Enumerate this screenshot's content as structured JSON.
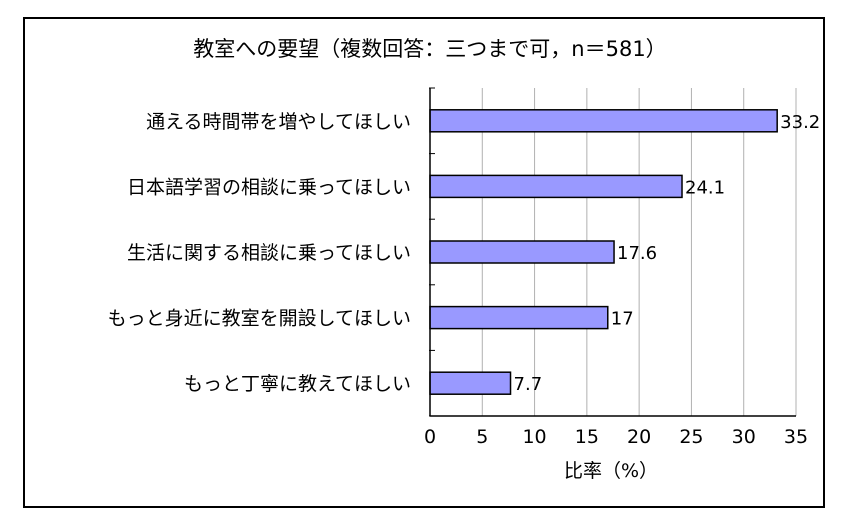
{
  "chart_data": {
    "type": "bar",
    "orientation": "horizontal",
    "title": "教室への要望（複数回答：三つまで可，n＝581）",
    "xlabel": "比率（%）",
    "ylabel": "",
    "categories": [
      "通える時間帯を増やしてほしい",
      "日本語学習の相談に乗ってほしい",
      "生活に関する相談に乗ってほしい",
      "もっと身近に教室を開設してほしい",
      "もっと丁寧に教えてほしい"
    ],
    "values": [
      33.2,
      24.1,
      17.6,
      17,
      7.7
    ],
    "value_labels": [
      "33.2",
      "24.1",
      "17.6",
      "17",
      "7.7"
    ],
    "xlim": [
      0,
      35
    ],
    "xticks": [
      "0",
      "5",
      "10",
      "15",
      "20",
      "25",
      "30",
      "35"
    ],
    "grid": "vertical",
    "legend": "none",
    "colors": {
      "bar_fill": "#9999ff",
      "bar_stroke": "#000000",
      "grid": "#b0b0b0"
    }
  }
}
